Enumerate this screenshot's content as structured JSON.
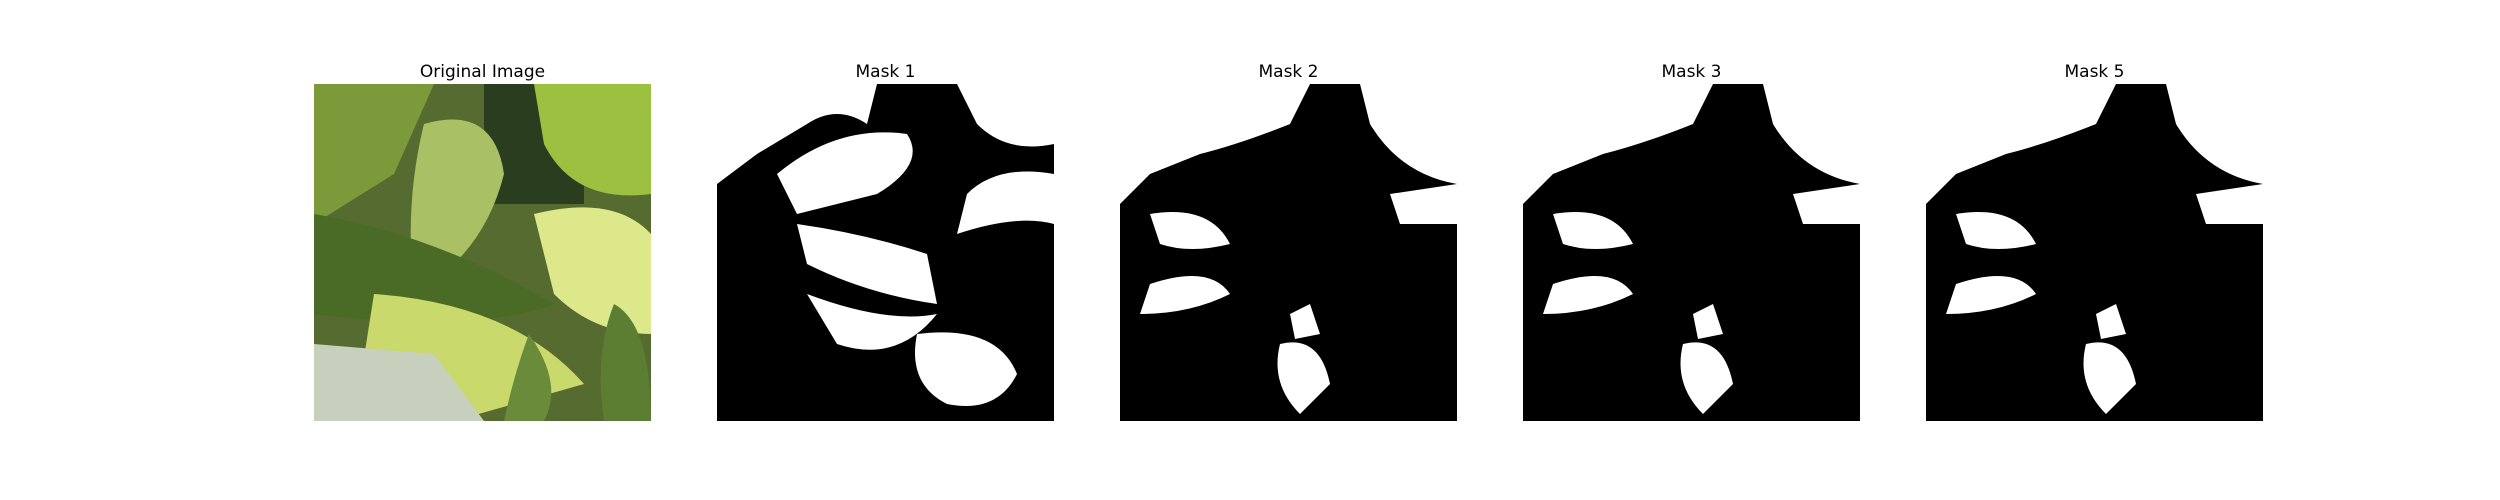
{
  "panels": [
    {
      "title": "Original Image",
      "kind": "image"
    },
    {
      "title": "Mask 1",
      "kind": "mask",
      "variant": "m1"
    },
    {
      "title": "Mask 2",
      "kind": "mask",
      "variant": "m2"
    },
    {
      "title": "Mask 3",
      "kind": "mask",
      "variant": "m2"
    },
    {
      "title": "Mask 5",
      "kind": "mask",
      "variant": "m2"
    }
  ],
  "colors": {
    "mask_bg": "#000000",
    "mask_fg": "#ffffff",
    "leaf_light": "#c8d86a",
    "leaf_dark": "#3f5a22"
  }
}
